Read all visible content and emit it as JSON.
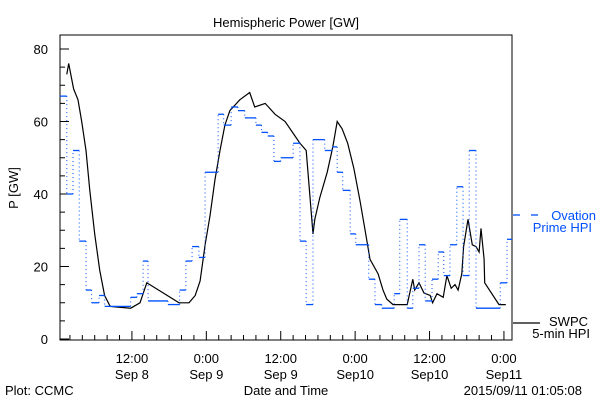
{
  "chart_data": {
    "type": "line",
    "title": "Hemispheric Power [GW]",
    "xlabel": "Date and Time",
    "ylabel": "P [GW]",
    "x_units": "hours since 2015-09-08 00:00 UT",
    "xlim": [
      0.4,
      73.3
    ],
    "ylim": [
      0,
      84
    ],
    "yticks": [
      0,
      20,
      40,
      60,
      80
    ],
    "yminor_step": 5,
    "xminor_step_hours": 2,
    "xticks": [
      {
        "h": 12,
        "time": "12:00",
        "date": "Sep 8"
      },
      {
        "h": 24,
        "time": "0:00",
        "date": "Sep 9"
      },
      {
        "h": 36,
        "time": "12:00",
        "date": "Sep 9"
      },
      {
        "h": 48,
        "time": "0:00",
        "date": "Sep10"
      },
      {
        "h": 60,
        "time": "12:00",
        "date": "Sep10"
      },
      {
        "h": 72,
        "time": "0:00",
        "date": "Sep11"
      }
    ],
    "series": [
      {
        "name": "SWPC 5-min HPI",
        "legend": [
          "SWPC",
          "5-min HPI"
        ],
        "color": "#000000",
        "style": "line",
        "points": [
          [
            1.5,
            73
          ],
          [
            1.8,
            76
          ],
          [
            2.6,
            69
          ],
          [
            3.3,
            66
          ],
          [
            3.9,
            60
          ],
          [
            4.6,
            52
          ],
          [
            5.2,
            41
          ],
          [
            6.0,
            29
          ],
          [
            6.8,
            19
          ],
          [
            7.6,
            12
          ],
          [
            8.5,
            9
          ],
          [
            11.8,
            8.5
          ],
          [
            13.3,
            10
          ],
          [
            14.4,
            15.5
          ],
          [
            19.6,
            10
          ],
          [
            21.2,
            10
          ],
          [
            22.2,
            12
          ],
          [
            23.0,
            16
          ],
          [
            23.8,
            26
          ],
          [
            24.6,
            34
          ],
          [
            25.4,
            44
          ],
          [
            26.2,
            52
          ],
          [
            27.0,
            59
          ],
          [
            27.8,
            63
          ],
          [
            29.4,
            66
          ],
          [
            31.0,
            68
          ],
          [
            31.8,
            64
          ],
          [
            33.5,
            65
          ],
          [
            35.1,
            62
          ],
          [
            36.7,
            60
          ],
          [
            38.3,
            56
          ],
          [
            39.1,
            54
          ],
          [
            40.1,
            52
          ],
          [
            41.2,
            29
          ],
          [
            41.5,
            33
          ],
          [
            42.3,
            39
          ],
          [
            43.5,
            46
          ],
          [
            44.4,
            53
          ],
          [
            45.1,
            60
          ],
          [
            45.9,
            58
          ],
          [
            46.8,
            54
          ],
          [
            47.8,
            47
          ],
          [
            48.8,
            38
          ],
          [
            49.6,
            30
          ],
          [
            50.4,
            22
          ],
          [
            51.7,
            18
          ],
          [
            52.5,
            13.5
          ],
          [
            53.1,
            11
          ],
          [
            54.1,
            9.5
          ],
          [
            56.4,
            9.5
          ],
          [
            57.3,
            16.5
          ],
          [
            57.6,
            13.5
          ],
          [
            58.3,
            15.5
          ],
          [
            59.1,
            12.7
          ],
          [
            60.1,
            12
          ],
          [
            60.5,
            10
          ],
          [
            61.2,
            12.5
          ],
          [
            62.2,
            11.5
          ],
          [
            62.8,
            17.5
          ],
          [
            63.5,
            14
          ],
          [
            64.1,
            15
          ],
          [
            64.6,
            13.5
          ],
          [
            65.2,
            18
          ],
          [
            65.5,
            25.5
          ],
          [
            66.2,
            33
          ],
          [
            66.9,
            26
          ],
          [
            67.5,
            25.5
          ],
          [
            68.0,
            24
          ],
          [
            68.3,
            30.5
          ],
          [
            68.8,
            22
          ],
          [
            68.9,
            15.5
          ],
          [
            71.2,
            9.5
          ],
          [
            72.3,
            9.5
          ]
        ]
      },
      {
        "name": "Ovation Prime HPI",
        "legend": [
          "Ovation",
          "Prime HPI"
        ],
        "color": "#0050ff",
        "style": "step",
        "end_h": 73.3,
        "steps": [
          [
            0.4,
            67
          ],
          [
            1.5,
            40
          ],
          [
            2.5,
            52
          ],
          [
            3.5,
            27
          ],
          [
            4.6,
            13.5
          ],
          [
            5.5,
            10
          ],
          [
            6.7,
            12
          ],
          [
            7.6,
            9
          ],
          [
            11.8,
            11.5
          ],
          [
            12.8,
            12.5
          ],
          [
            13.8,
            21.5
          ],
          [
            14.6,
            10.5
          ],
          [
            17.8,
            9.5
          ],
          [
            19.7,
            13.5
          ],
          [
            20.7,
            21.5
          ],
          [
            21.7,
            25.5
          ],
          [
            22.8,
            22.5
          ],
          [
            23.8,
            46
          ],
          [
            25.9,
            62
          ],
          [
            26.8,
            59
          ],
          [
            28.0,
            64
          ],
          [
            29.1,
            63
          ],
          [
            30.2,
            61
          ],
          [
            32.0,
            59
          ],
          [
            32.9,
            57
          ],
          [
            33.9,
            56
          ],
          [
            34.9,
            49
          ],
          [
            36.0,
            50
          ],
          [
            38.0,
            54
          ],
          [
            39.1,
            27
          ],
          [
            40.1,
            9.5
          ],
          [
            41.2,
            55
          ],
          [
            43.1,
            52
          ],
          [
            44.3,
            53
          ],
          [
            45.1,
            46
          ],
          [
            46.0,
            41
          ],
          [
            47.2,
            29
          ],
          [
            48.1,
            26
          ],
          [
            50.2,
            16.5
          ],
          [
            51.2,
            9.5
          ],
          [
            52.3,
            8.5
          ],
          [
            54.3,
            12.5
          ],
          [
            55.2,
            33
          ],
          [
            56.4,
            8.5
          ],
          [
            57.3,
            14
          ],
          [
            58.3,
            26
          ],
          [
            59.3,
            10.5
          ],
          [
            60.4,
            16.5
          ],
          [
            61.4,
            24
          ],
          [
            62.3,
            17.5
          ],
          [
            63.3,
            26
          ],
          [
            64.4,
            42
          ],
          [
            65.4,
            17.5
          ],
          [
            66.4,
            52
          ],
          [
            67.5,
            8.5
          ],
          [
            71.4,
            15.5
          ],
          [
            72.5,
            27.5
          ]
        ]
      }
    ]
  },
  "footer": {
    "left": "Plot: CCMC",
    "right": "2015/09/11 01:05:08"
  }
}
